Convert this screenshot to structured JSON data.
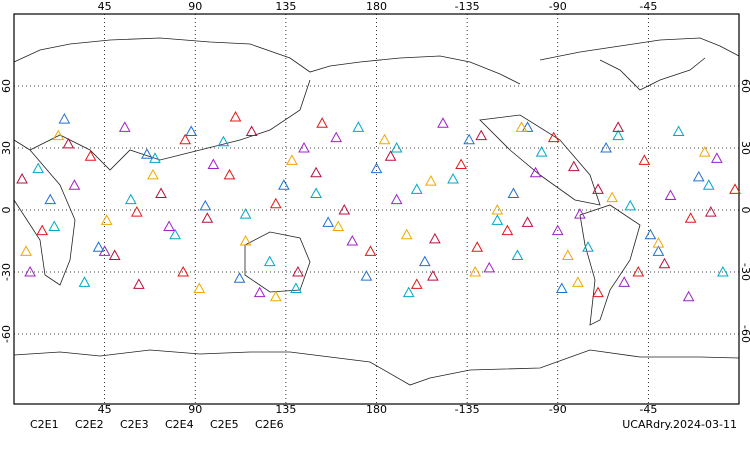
{
  "chart_data": {
    "type": "scatter",
    "xlim": [
      0,
      360
    ],
    "ylim": [
      -90,
      90
    ],
    "xticks": [
      45,
      90,
      135,
      180,
      {
        "value": 225,
        "label": "-135"
      },
      {
        "value": 270,
        "label": "-90"
      },
      {
        "value": 315,
        "label": "-45"
      }
    ],
    "yticks": [
      -60,
      -30,
      0,
      30,
      60
    ],
    "grid": true,
    "series": [
      {
        "name": "C2E1",
        "color": "#00a8c8",
        "x": [
          12,
          35,
          58,
          80,
          104,
          127,
          150,
          171,
          196,
          218,
          240,
          262,
          285,
          306,
          330,
          352,
          20,
          70,
          140,
          200,
          250,
          300,
          345,
          115,
          190
        ],
        "y": [
          20,
          -35,
          5,
          -12,
          33,
          -25,
          8,
          40,
          -40,
          15,
          -5,
          28,
          -18,
          2,
          38,
          -30,
          -8,
          25,
          -38,
          10,
          -22,
          36,
          12,
          -2,
          30
        ]
      },
      {
        "name": "C2E2",
        "color": "#a020c8",
        "x": [
          8,
          30,
          55,
          77,
          99,
          122,
          144,
          168,
          190,
          213,
          236,
          259,
          281,
          303,
          326,
          349,
          45,
          160,
          270,
          335
        ],
        "y": [
          -30,
          12,
          40,
          -8,
          22,
          -40,
          30,
          -15,
          5,
          42,
          -28,
          18,
          -2,
          -35,
          7,
          25,
          -20,
          35,
          -10,
          -42
        ]
      },
      {
        "name": "C2E3",
        "color": "#2070d0",
        "x": [
          18,
          42,
          66,
          88,
          112,
          134,
          156,
          180,
          204,
          226,
          248,
          272,
          294,
          316,
          340,
          95,
          175,
          255,
          320,
          25
        ],
        "y": [
          5,
          -18,
          27,
          38,
          -33,
          12,
          -6,
          20,
          -25,
          34,
          8,
          -38,
          30,
          -12,
          16,
          2,
          -32,
          40,
          -20,
          44
        ]
      },
      {
        "name": "C2E4",
        "color": "#b8103c",
        "x": [
          4,
          27,
          50,
          73,
          96,
          118,
          141,
          164,
          187,
          209,
          232,
          255,
          278,
          300,
          323,
          346,
          62,
          208,
          290,
          150
        ],
        "y": [
          15,
          32,
          -22,
          8,
          -4,
          38,
          -30,
          0,
          26,
          -14,
          36,
          -6,
          21,
          40,
          -26,
          -1,
          -36,
          -32,
          10,
          18
        ]
      },
      {
        "name": "C2E5",
        "color": "#e01818",
        "x": [
          14,
          38,
          61,
          84,
          107,
          130,
          153,
          177,
          200,
          222,
          245,
          268,
          290,
          313,
          336,
          358,
          110,
          230,
          310,
          85
        ],
        "y": [
          -10,
          26,
          -1,
          -30,
          17,
          3,
          42,
          -20,
          -36,
          22,
          -10,
          35,
          -40,
          24,
          -4,
          10,
          45,
          -18,
          -30,
          34
        ]
      },
      {
        "name": "C2E6",
        "color": "#f0a800",
        "x": [
          22,
          46,
          69,
          92,
          115,
          138,
          161,
          184,
          207,
          229,
          252,
          275,
          297,
          320,
          343,
          6,
          130,
          240,
          280,
          195
        ],
        "y": [
          36,
          -5,
          17,
          -38,
          -15,
          24,
          -8,
          34,
          14,
          -30,
          40,
          -22,
          6,
          -16,
          28,
          -20,
          -42,
          0,
          -35,
          -12
        ]
      }
    ],
    "source_label": "UCARdry.2024-03-11"
  }
}
